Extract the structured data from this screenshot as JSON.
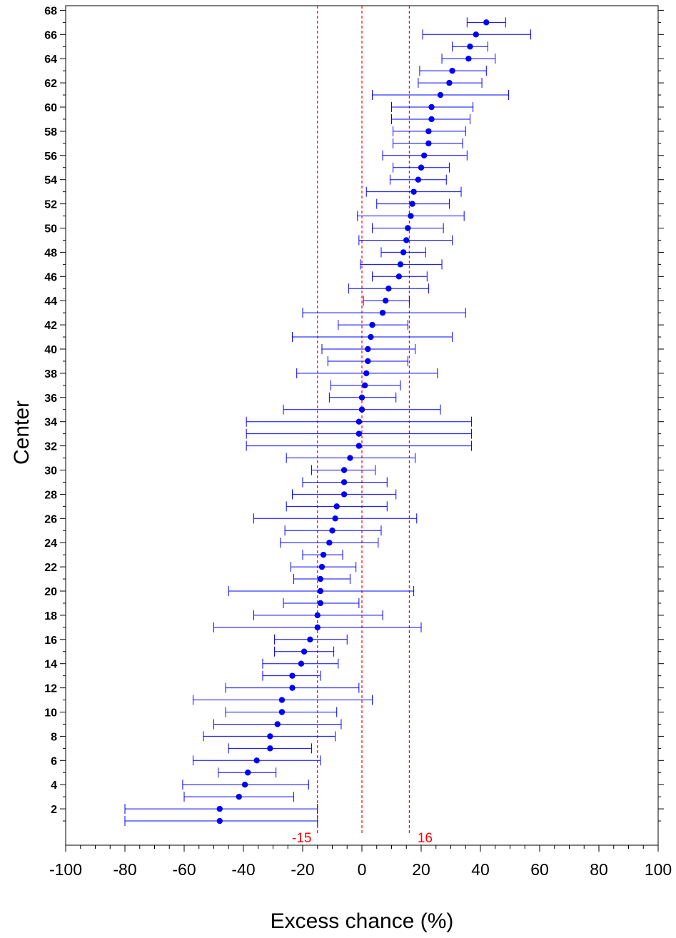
{
  "chart_data": {
    "type": "scatter",
    "style": "forest plot — point estimates with horizontal confidence-interval error bars",
    "xlabel": "Excess chance (%)",
    "ylabel": "Center",
    "xlim": [
      -100,
      100
    ],
    "x_ticks": [
      -100,
      -80,
      -60,
      -40,
      -20,
      0,
      20,
      40,
      60,
      80,
      100
    ],
    "ylim": [
      0,
      68
    ],
    "y_ticks": [
      2,
      4,
      6,
      8,
      10,
      12,
      14,
      16,
      18,
      20,
      22,
      24,
      26,
      28,
      30,
      32,
      34,
      36,
      38,
      40,
      42,
      44,
      46,
      48,
      50,
      52,
      54,
      56,
      58,
      60,
      62,
      64,
      66,
      68
    ],
    "grid": false,
    "legend": "none",
    "colors": {
      "points": "#0000ff",
      "error_bars": "#0000ff",
      "reference_lines": "#ff0000",
      "axes": "#000000"
    },
    "reference_lines": [
      {
        "x": -15,
        "label": "-15",
        "style": "dashed"
      },
      {
        "x": 0,
        "label": "",
        "style": "dashed"
      },
      {
        "x": 16,
        "label": "16",
        "style": "dashed"
      }
    ],
    "series": [
      {
        "points": [
          {
            "center": 1,
            "estimate": -48,
            "lower": -80,
            "upper": -15
          },
          {
            "center": 2,
            "estimate": -48,
            "lower": -80,
            "upper": -15
          },
          {
            "center": 3,
            "estimate": -41.5,
            "lower": -60,
            "upper": -23
          },
          {
            "center": 4,
            "estimate": -39.5,
            "lower": -60.5,
            "upper": -18
          },
          {
            "center": 5,
            "estimate": -38.5,
            "lower": -48.5,
            "upper": -29
          },
          {
            "center": 6,
            "estimate": -35.5,
            "lower": -57,
            "upper": -14
          },
          {
            "center": 7,
            "estimate": -31,
            "lower": -45,
            "upper": -17
          },
          {
            "center": 8,
            "estimate": -31,
            "lower": -53.5,
            "upper": -9
          },
          {
            "center": 9,
            "estimate": -28.5,
            "lower": -50,
            "upper": -7
          },
          {
            "center": 10,
            "estimate": -27,
            "lower": -46,
            "upper": -8.5
          },
          {
            "center": 11,
            "estimate": -27,
            "lower": -57,
            "upper": 3.5
          },
          {
            "center": 12,
            "estimate": -23.5,
            "lower": -46,
            "upper": -1
          },
          {
            "center": 13,
            "estimate": -23.5,
            "lower": -33.5,
            "upper": -14
          },
          {
            "center": 14,
            "estimate": -20.5,
            "lower": -33.5,
            "upper": -8
          },
          {
            "center": 15,
            "estimate": -19.5,
            "lower": -29.5,
            "upper": -9.5
          },
          {
            "center": 16,
            "estimate": -17.5,
            "lower": -29.5,
            "upper": -5
          },
          {
            "center": 17,
            "estimate": -15,
            "lower": -50,
            "upper": 20
          },
          {
            "center": 18,
            "estimate": -15,
            "lower": -36.5,
            "upper": 7
          },
          {
            "center": 19,
            "estimate": -14,
            "lower": -26.5,
            "upper": -1
          },
          {
            "center": 20,
            "estimate": -14,
            "lower": -45,
            "upper": 17.5
          },
          {
            "center": 21,
            "estimate": -14,
            "lower": -23,
            "upper": -4
          },
          {
            "center": 22,
            "estimate": -13.5,
            "lower": -24,
            "upper": -2
          },
          {
            "center": 23,
            "estimate": -13,
            "lower": -20,
            "upper": -6.5
          },
          {
            "center": 24,
            "estimate": -11,
            "lower": -27.5,
            "upper": 5.5
          },
          {
            "center": 25,
            "estimate": -10,
            "lower": -26,
            "upper": 6.5
          },
          {
            "center": 26,
            "estimate": -9,
            "lower": -36.5,
            "upper": 18.5
          },
          {
            "center": 27,
            "estimate": -8.5,
            "lower": -25.5,
            "upper": 8.5
          },
          {
            "center": 28,
            "estimate": -6,
            "lower": -23.5,
            "upper": 11.5
          },
          {
            "center": 29,
            "estimate": -6,
            "lower": -20,
            "upper": 8.5
          },
          {
            "center": 30,
            "estimate": -6,
            "lower": -17,
            "upper": 4.5
          },
          {
            "center": 31,
            "estimate": -4,
            "lower": -25.5,
            "upper": 18
          },
          {
            "center": 32,
            "estimate": -1,
            "lower": -39,
            "upper": 37
          },
          {
            "center": 33,
            "estimate": -1,
            "lower": -39,
            "upper": 37
          },
          {
            "center": 34,
            "estimate": -1,
            "lower": -39,
            "upper": 37
          },
          {
            "center": 35,
            "estimate": 0,
            "lower": -26.5,
            "upper": 26.5
          },
          {
            "center": 36,
            "estimate": 0,
            "lower": -11,
            "upper": 11.5
          },
          {
            "center": 37,
            "estimate": 1,
            "lower": -10.5,
            "upper": 13
          },
          {
            "center": 38,
            "estimate": 1.5,
            "lower": -22,
            "upper": 25.5
          },
          {
            "center": 39,
            "estimate": 2,
            "lower": -11.5,
            "upper": 15.5
          },
          {
            "center": 40,
            "estimate": 2,
            "lower": -13.5,
            "upper": 18
          },
          {
            "center": 41,
            "estimate": 3,
            "lower": -23.5,
            "upper": 30.5
          },
          {
            "center": 42,
            "estimate": 3.5,
            "lower": -8,
            "upper": 15.5
          },
          {
            "center": 43,
            "estimate": 7,
            "lower": -20,
            "upper": 35
          },
          {
            "center": 44,
            "estimate": 8,
            "lower": 0.5,
            "upper": 16
          },
          {
            "center": 45,
            "estimate": 9,
            "lower": -4.5,
            "upper": 22.5
          },
          {
            "center": 46,
            "estimate": 12.5,
            "lower": 3.5,
            "upper": 22
          },
          {
            "center": 47,
            "estimate": 13,
            "lower": -0.5,
            "upper": 27
          },
          {
            "center": 48,
            "estimate": 14,
            "lower": 6.5,
            "upper": 21.5
          },
          {
            "center": 49,
            "estimate": 15,
            "lower": -1,
            "upper": 30.5
          },
          {
            "center": 50,
            "estimate": 15.5,
            "lower": 3.5,
            "upper": 27.5
          },
          {
            "center": 51,
            "estimate": 16.5,
            "lower": -1.5,
            "upper": 34.5
          },
          {
            "center": 52,
            "estimate": 17,
            "lower": 5,
            "upper": 29.5
          },
          {
            "center": 53,
            "estimate": 17.5,
            "lower": 1.5,
            "upper": 33.5
          },
          {
            "center": 54,
            "estimate": 19,
            "lower": 9.5,
            "upper": 28.5
          },
          {
            "center": 55,
            "estimate": 20,
            "lower": 10.5,
            "upper": 29.5
          },
          {
            "center": 56,
            "estimate": 21,
            "lower": 7,
            "upper": 35.5
          },
          {
            "center": 57,
            "estimate": 22.5,
            "lower": 10.5,
            "upper": 34
          },
          {
            "center": 58,
            "estimate": 22.5,
            "lower": 10.5,
            "upper": 35
          },
          {
            "center": 59,
            "estimate": 23.5,
            "lower": 10,
            "upper": 36.5
          },
          {
            "center": 60,
            "estimate": 23.5,
            "lower": 10,
            "upper": 37.5
          },
          {
            "center": 61,
            "estimate": 26.5,
            "lower": 3.5,
            "upper": 49.5
          },
          {
            "center": 62,
            "estimate": 29.5,
            "lower": 19,
            "upper": 40.5
          },
          {
            "center": 63,
            "estimate": 30.5,
            "lower": 19.5,
            "upper": 42
          },
          {
            "center": 64,
            "estimate": 36,
            "lower": 27,
            "upper": 45
          },
          {
            "center": 65,
            "estimate": 36.5,
            "lower": 30.5,
            "upper": 42.5
          },
          {
            "center": 66,
            "estimate": 38.5,
            "lower": 20.5,
            "upper": 57
          },
          {
            "center": 67,
            "estimate": 42,
            "lower": 35.5,
            "upper": 48.5
          }
        ]
      }
    ]
  }
}
